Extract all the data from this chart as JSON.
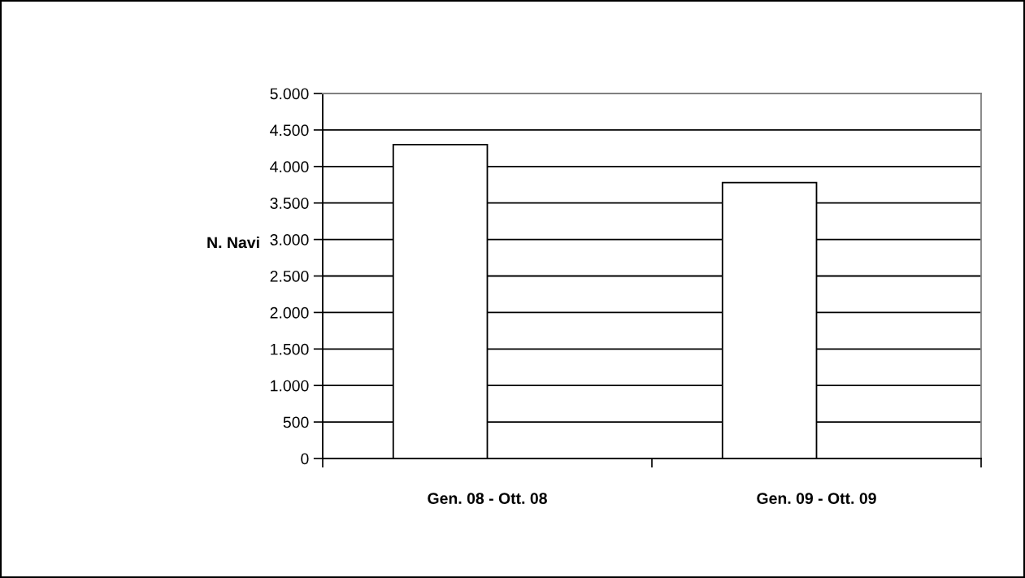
{
  "chart_data": {
    "type": "bar",
    "ylabel": "N. Navi",
    "categories": [
      "Gen. 08 - Ott. 08",
      "Gen. 09 - Ott. 09"
    ],
    "values": [
      4300,
      3780
    ],
    "color": "#ffffff",
    "ylim": [
      0,
      5000
    ],
    "yticks": [
      0,
      500,
      {
        "value": 1000,
        "label": "1.000"
      },
      {
        "value": 1500,
        "label": "1.500"
      },
      {
        "value": 2000,
        "label": "2.000"
      },
      {
        "value": 2500,
        "label": "2.500"
      },
      {
        "value": 3000,
        "label": "3.000"
      },
      {
        "value": 3500,
        "label": "3.500"
      },
      {
        "value": 4000,
        "label": "4.000"
      },
      {
        "value": 4500,
        "label": "4.500"
      },
      {
        "value": 5000,
        "label": "5.000"
      }
    ],
    "grid": "y",
    "legend": false
  }
}
